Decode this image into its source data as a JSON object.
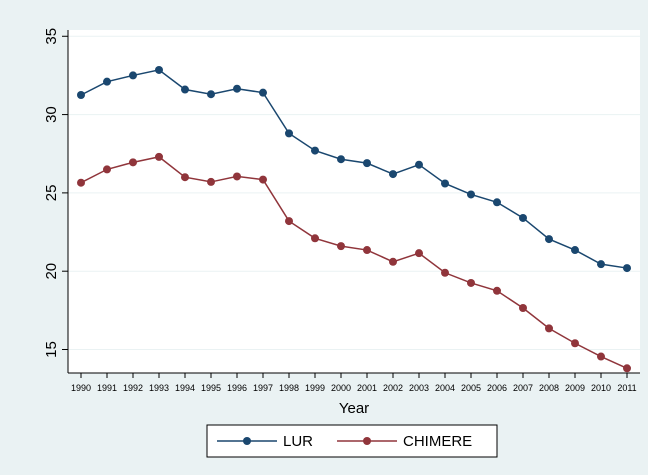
{
  "chart_data": {
    "type": "line",
    "x_label": "Year",
    "x": [
      1990,
      1991,
      1992,
      1993,
      1994,
      1995,
      1996,
      1997,
      1998,
      1999,
      2000,
      2001,
      2002,
      2003,
      2004,
      2005,
      2006,
      2007,
      2008,
      2009,
      2010,
      2011
    ],
    "series": [
      {
        "name": "LUR",
        "color": "#1a476f",
        "values": [
          31.25,
          32.1,
          32.5,
          32.85,
          31.6,
          31.3,
          31.65,
          31.4,
          28.8,
          27.7,
          27.15,
          26.9,
          26.2,
          26.8,
          25.6,
          24.9,
          24.4,
          23.4,
          22.05,
          21.35,
          20.45,
          20.2
        ]
      },
      {
        "name": "CHIMERE",
        "color": "#90353b",
        "values": [
          25.65,
          26.5,
          26.95,
          27.3,
          26.0,
          25.7,
          26.05,
          25.85,
          23.2,
          22.1,
          21.6,
          21.35,
          20.6,
          21.15,
          19.9,
          19.25,
          18.75,
          17.65,
          16.35,
          15.4,
          14.55,
          13.8
        ]
      }
    ],
    "xlim": [
      1989.5,
      2011.5
    ],
    "xticks": [
      1990,
      1991,
      1992,
      1993,
      1994,
      1995,
      1996,
      1997,
      1998,
      1999,
      2000,
      2001,
      2002,
      2003,
      2004,
      2005,
      2006,
      2007,
      2008,
      2009,
      2010,
      2011
    ],
    "ylim": [
      13.5,
      35.4
    ],
    "yticks": [
      15,
      20,
      25,
      30,
      35
    ],
    "grid": true,
    "legend": "bottom"
  }
}
